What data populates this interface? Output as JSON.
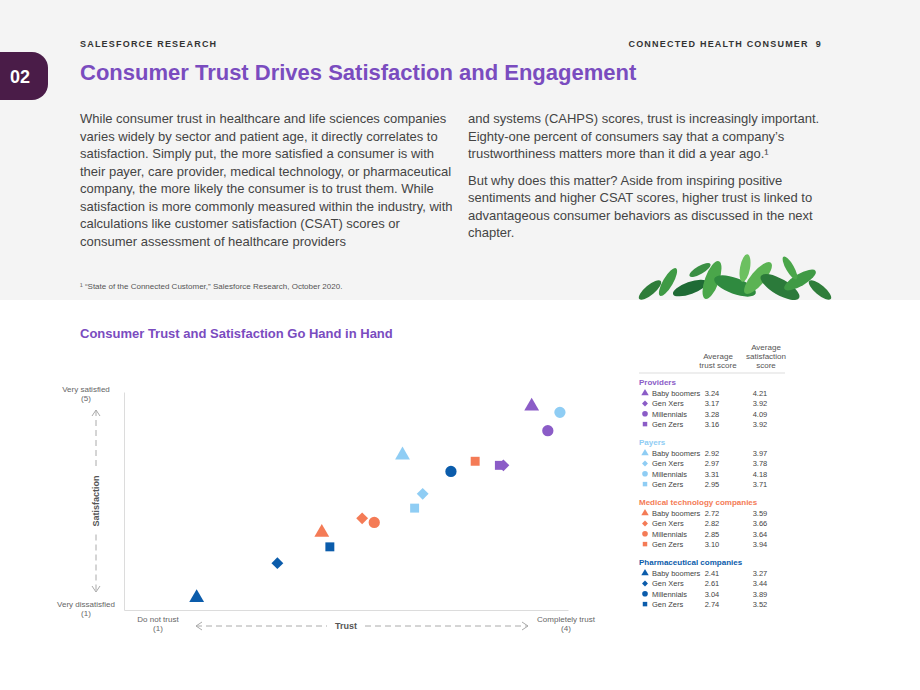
{
  "header": {
    "left": "SALESFORCE RESEARCH",
    "right": "CONNECTED HEALTH CONSUMER",
    "page": "9"
  },
  "section": "02",
  "title": "Consumer Trust Drives Satisfaction and Engagement",
  "body": {
    "columns": [
      [
        "While consumer trust in healthcare and life sciences companies varies widely by sector and patient age, it directly correlates to satisfaction. Simply put, the more satisfied a consumer is with their payer, care provider, medical technology, or pharmaceutical company, the more likely the consumer is to trust them. While satisfaction is more commonly measured within the industry, with calculations like customer satisfaction (CSAT) scores or consumer assessment of healthcare providers"
      ],
      [
        "and systems (CAHPS) scores, trust is increasingly important. Eighty-one percent of consumers say that a company’s trustworthiness matters more than it did a year ago.¹",
        "But why does this matter? Aside from inspiring positive sentiments and higher CSAT scores, higher trust is linked to advantageous consumer behaviors as discussed in the next chapter."
      ]
    ]
  },
  "footnote": "¹ “State of the Connected Customer,” Salesforce Research, October 2020.",
  "chart_data": {
    "type": "scatter",
    "title": "Consumer Trust and Satisfaction Go Hand in Hand",
    "x_label": "Trust",
    "y_label": "Satisfaction",
    "x_end_labels": [
      "Do not trust (1)",
      "Completely trust (4)"
    ],
    "y_end_labels": [
      "Very dissatisfied (1)",
      "Very satisfied (5)"
    ],
    "xlim": [
      2.23,
      3.33
    ],
    "ylim": [
      3.21,
      4.28
    ],
    "xticks": [],
    "yticks": [],
    "tick_labels": false,
    "grid": false,
    "legend": "right",
    "legend_headers": [
      "Average trust score",
      "Average satisfaction score"
    ],
    "categories": [
      "Baby boomers",
      "Gen Xers",
      "Millennials",
      "Gen Zers"
    ],
    "series": [
      {
        "name": "Providers",
        "color": "#8b5cc7",
        "x": [
          3.24,
          3.17,
          3.28,
          3.16
        ],
        "values": [
          4.21,
          3.92,
          4.09,
          3.92
        ]
      },
      {
        "name": "Payers",
        "color": "#8fcdf4",
        "x": [
          2.92,
          2.97,
          3.31,
          2.95
        ],
        "values": [
          3.97,
          3.78,
          4.18,
          3.71
        ]
      },
      {
        "name": "Medical technology companies",
        "color": "#f47b56",
        "x": [
          2.72,
          2.82,
          2.85,
          3.1
        ],
        "values": [
          3.59,
          3.66,
          3.64,
          3.94
        ]
      },
      {
        "name": "Pharmaceutical companies",
        "color": "#0b5cab",
        "x": [
          2.41,
          2.61,
          3.04,
          2.74
        ],
        "values": [
          3.27,
          3.44,
          3.89,
          3.52
        ]
      }
    ]
  }
}
